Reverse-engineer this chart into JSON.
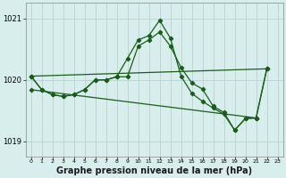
{
  "background_color": "#d8eeed",
  "grid_color": "#b0cccc",
  "line_color": "#1a5c1a",
  "marker_color": "#1a5c1a",
  "xlabel": "Graphe pression niveau de la mer (hPa)",
  "xlabel_fontsize": 7,
  "xlim": [
    -0.5,
    23.5
  ],
  "ylim": [
    1018.75,
    1021.25
  ],
  "yticks": [
    1019,
    1020,
    1021
  ],
  "xticks": [
    0,
    1,
    2,
    3,
    4,
    5,
    6,
    7,
    8,
    9,
    10,
    11,
    12,
    13,
    14,
    15,
    16,
    17,
    18,
    19,
    20,
    21,
    22,
    23
  ],
  "line1_x": [
    0,
    22
  ],
  "line1_y": [
    1020.06,
    1020.18
  ],
  "line2_x": [
    0,
    21
  ],
  "line2_y": [
    1019.84,
    1019.38
  ],
  "line3_x": [
    0,
    1,
    2,
    3,
    4,
    5,
    6,
    7,
    8,
    9,
    10,
    11,
    12,
    13,
    14,
    15,
    16,
    17,
    18,
    19,
    20,
    21,
    22
  ],
  "line3_y": [
    1020.06,
    1019.84,
    1019.76,
    1019.73,
    1019.76,
    1019.84,
    1020.0,
    1020.0,
    1020.05,
    1020.35,
    1020.65,
    1020.72,
    1020.97,
    1020.68,
    1020.06,
    1019.78,
    1019.65,
    1019.54,
    1019.44,
    1019.18,
    1019.37,
    1019.38,
    1020.18
  ],
  "line4_x": [
    0,
    1,
    2,
    3,
    4,
    5,
    6,
    7,
    8,
    9,
    10,
    11,
    12,
    13,
    14,
    15,
    16,
    17,
    18,
    19,
    20,
    21,
    22
  ],
  "line4_y": [
    1020.06,
    1019.84,
    1019.76,
    1019.73,
    1019.76,
    1019.84,
    1020.0,
    1020.0,
    1020.05,
    1020.05,
    1020.55,
    1020.65,
    1020.78,
    1020.55,
    1020.2,
    1019.95,
    1019.85,
    1019.57,
    1019.47,
    1019.18,
    1019.37,
    1019.38,
    1020.18
  ]
}
